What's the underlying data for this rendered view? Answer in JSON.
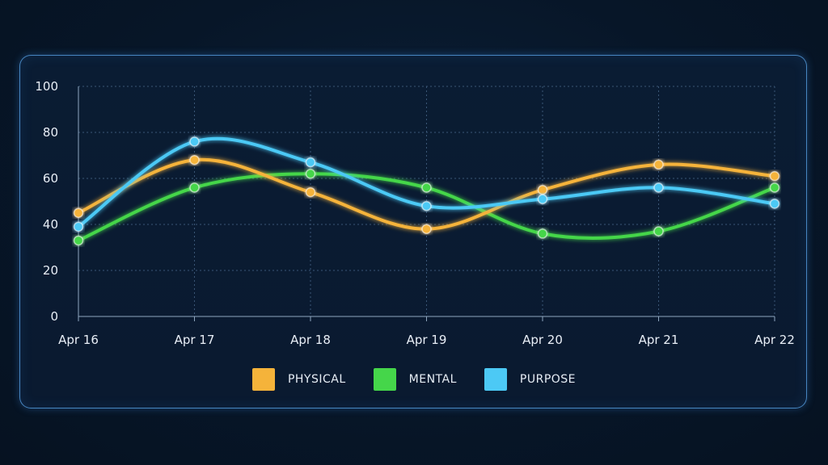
{
  "chart_data": {
    "type": "line",
    "title": "",
    "xlabel": "",
    "ylabel": "",
    "categories": [
      "Apr 16",
      "Apr 17",
      "Apr 18",
      "Apr 19",
      "Apr 20",
      "Apr 21",
      "Apr 22"
    ],
    "ylim": [
      0,
      100
    ],
    "yticks": [
      0,
      20,
      40,
      60,
      80,
      100
    ],
    "grid": true,
    "smooth": true,
    "legend_position": "bottom-center",
    "series": [
      {
        "name": "PHYSICAL",
        "color": "#f5b33a",
        "values": [
          45,
          68,
          54,
          38,
          55,
          66,
          61
        ]
      },
      {
        "name": "MENTAL",
        "color": "#45d64a",
        "values": [
          33,
          56,
          62,
          56,
          36,
          37,
          56
        ]
      },
      {
        "name": "PURPOSE",
        "color": "#4cc9f5",
        "values": [
          39,
          76,
          67,
          48,
          51,
          56,
          49
        ]
      }
    ]
  }
}
